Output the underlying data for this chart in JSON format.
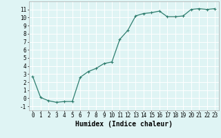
{
  "x": [
    0,
    1,
    2,
    3,
    4,
    5,
    6,
    7,
    8,
    9,
    10,
    11,
    12,
    13,
    14,
    15,
    16,
    17,
    18,
    19,
    20,
    21,
    22,
    23
  ],
  "y": [
    2.7,
    0.1,
    -0.3,
    -0.5,
    -0.4,
    -0.4,
    2.6,
    3.3,
    3.7,
    4.3,
    4.5,
    7.3,
    8.4,
    10.2,
    10.5,
    10.6,
    10.8,
    10.1,
    10.1,
    10.2,
    11.0,
    11.1,
    11.0,
    11.1
  ],
  "xlabel": "Humidex (Indice chaleur)",
  "xlim": [
    -0.5,
    23.5
  ],
  "ylim": [
    -1.5,
    12.0
  ],
  "xticks": [
    0,
    1,
    2,
    3,
    4,
    5,
    6,
    7,
    8,
    9,
    10,
    11,
    12,
    13,
    14,
    15,
    16,
    17,
    18,
    19,
    20,
    21,
    22,
    23
  ],
  "yticks": [
    -1,
    0,
    1,
    2,
    3,
    4,
    5,
    6,
    7,
    8,
    9,
    10,
    11
  ],
  "line_color": "#2e7d6e",
  "marker": "+",
  "marker_size": 3,
  "bg_color": "#dff4f4",
  "grid_color": "#ffffff",
  "tick_fontsize": 5.5,
  "xlabel_fontsize": 7.0,
  "linewidth": 0.9
}
